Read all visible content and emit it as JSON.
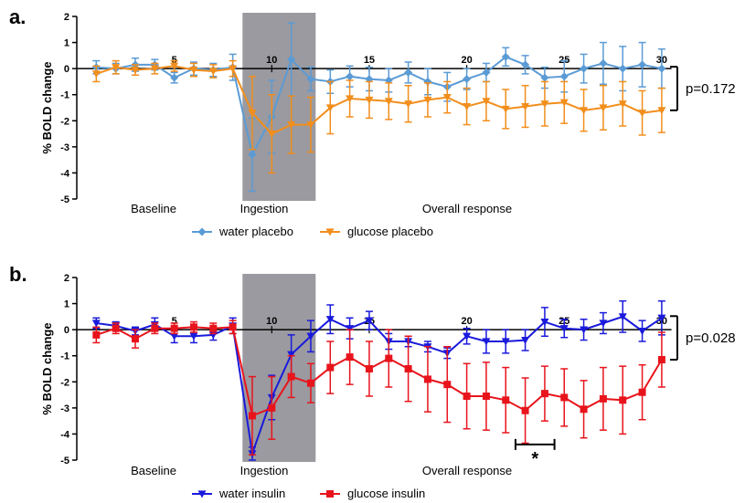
{
  "chart_data": [
    {
      "type": "line",
      "panel_label": "a.",
      "ylabel": "% BOLD change",
      "ylim": [
        -5,
        2
      ],
      "yticks": [
        2,
        1,
        0,
        -1,
        -2,
        -3,
        -4,
        -5
      ],
      "xticks": [
        5,
        10,
        15,
        20,
        25,
        30
      ],
      "regions": [
        "Baseline",
        "Ingestion",
        "Overall response"
      ],
      "shaded_range": [
        8.5,
        12.25
      ],
      "pvalue": "p=0.172",
      "series": [
        {
          "name": "water placebo",
          "color": "#5b9bd5",
          "marker": "diamond",
          "x": [
            1,
            2,
            3,
            4,
            5,
            6,
            7,
            8,
            9,
            10,
            11,
            12,
            13,
            14,
            15,
            16,
            17,
            18,
            19,
            20,
            21,
            22,
            23,
            24,
            25,
            26,
            27,
            28,
            29,
            30
          ],
          "y": [
            0.05,
            0.0,
            0.15,
            0.15,
            -0.35,
            0.0,
            -0.05,
            0.05,
            -3.3,
            -1.85,
            0.35,
            -0.4,
            -0.5,
            -0.3,
            -0.4,
            -0.45,
            -0.15,
            -0.5,
            -0.7,
            -0.4,
            -0.15,
            0.45,
            0.15,
            -0.35,
            -0.3,
            0.0,
            0.2,
            0.0,
            0.15,
            0.0
          ],
          "err": [
            0.25,
            0.2,
            0.25,
            0.2,
            0.2,
            0.25,
            0.25,
            0.5,
            1.4,
            1.4,
            1.4,
            0.45,
            0.45,
            0.4,
            0.45,
            0.45,
            0.4,
            0.5,
            0.55,
            0.4,
            0.35,
            0.35,
            0.35,
            0.4,
            0.6,
            0.55,
            0.8,
            0.85,
            0.85,
            0.75
          ]
        },
        {
          "name": "glucose placebo",
          "color": "#f28e1c",
          "marker": "triangle-down",
          "x": [
            1,
            2,
            3,
            4,
            5,
            6,
            7,
            8,
            9,
            10,
            11,
            12,
            13,
            14,
            15,
            16,
            17,
            18,
            19,
            20,
            21,
            22,
            23,
            24,
            25,
            26,
            27,
            28,
            29,
            30
          ],
          "y": [
            -0.2,
            0.05,
            -0.05,
            0.0,
            0.1,
            -0.05,
            -0.1,
            0.0,
            -1.7,
            -2.5,
            -2.15,
            -2.15,
            -1.5,
            -1.15,
            -1.2,
            -1.25,
            -1.35,
            -1.2,
            -1.1,
            -1.45,
            -1.25,
            -1.55,
            -1.45,
            -1.35,
            -1.3,
            -1.6,
            -1.5,
            -1.35,
            -1.7,
            -1.6
          ],
          "err": [
            0.3,
            0.25,
            0.2,
            0.2,
            0.2,
            0.25,
            0.25,
            0.3,
            1.4,
            1.5,
            1.1,
            1.05,
            1.0,
            0.7,
            0.7,
            0.7,
            0.7,
            0.65,
            0.6,
            0.7,
            0.75,
            0.75,
            0.8,
            0.85,
            0.8,
            0.8,
            0.85,
            0.85,
            0.85,
            0.85
          ]
        }
      ]
    },
    {
      "type": "line",
      "panel_label": "b.",
      "ylabel": "% BOLD change",
      "ylim": [
        -5,
        2
      ],
      "yticks": [
        2,
        1,
        0,
        -1,
        -2,
        -3,
        -4,
        -5
      ],
      "xticks": [
        5,
        10,
        15,
        20,
        25,
        30
      ],
      "regions": [
        "Baseline",
        "Ingestion",
        "Overall response"
      ],
      "shaded_range": [
        8.5,
        12.25
      ],
      "pvalue": "p=0.028",
      "significance": {
        "label": "*",
        "x_range": [
          22.5,
          24.5
        ],
        "y": -4.4
      },
      "series": [
        {
          "name": "water insulin",
          "color": "#1a1adc",
          "marker": "triangle-down",
          "x": [
            1,
            2,
            3,
            4,
            5,
            6,
            7,
            8,
            9,
            10,
            11,
            12,
            13,
            14,
            15,
            16,
            17,
            18,
            19,
            20,
            21,
            22,
            23,
            24,
            25,
            26,
            27,
            28,
            29,
            30
          ],
          "y": [
            0.25,
            0.15,
            -0.05,
            0.2,
            -0.25,
            -0.25,
            -0.2,
            0.15,
            -4.75,
            -2.6,
            -0.95,
            -0.25,
            0.4,
            0.05,
            0.35,
            -0.45,
            -0.45,
            -0.65,
            -0.9,
            -0.25,
            -0.45,
            -0.45,
            -0.4,
            0.3,
            0.05,
            0.0,
            0.25,
            0.5,
            -0.05,
            0.45
          ],
          "err": [
            0.2,
            0.15,
            0.15,
            0.25,
            0.25,
            0.25,
            0.2,
            0.3,
            0.25,
            0.85,
            0.75,
            0.6,
            0.55,
            0.4,
            0.35,
            0.3,
            0.2,
            0.2,
            0.2,
            0.3,
            0.45,
            0.45,
            0.4,
            0.55,
            0.35,
            0.4,
            0.4,
            0.6,
            0.4,
            0.65
          ]
        },
        {
          "name": "glucose insulin",
          "color": "#e8141c",
          "marker": "square",
          "x": [
            1,
            2,
            3,
            4,
            5,
            6,
            7,
            8,
            9,
            10,
            11,
            12,
            13,
            14,
            15,
            16,
            17,
            18,
            19,
            20,
            21,
            22,
            23,
            24,
            25,
            26,
            27,
            28,
            29,
            30
          ],
          "y": [
            -0.2,
            0.05,
            -0.35,
            0.05,
            0.05,
            0.1,
            0.05,
            0.1,
            -3.3,
            -3.0,
            -1.8,
            -2.05,
            -1.45,
            -1.05,
            -1.5,
            -1.1,
            -1.5,
            -1.9,
            -2.1,
            -2.55,
            -2.55,
            -2.7,
            -3.1,
            -2.45,
            -2.6,
            -3.05,
            -2.65,
            -2.7,
            -2.4,
            -1.15
          ],
          "err": [
            0.3,
            0.2,
            0.35,
            0.2,
            0.2,
            0.2,
            0.2,
            0.25,
            1.5,
            1.2,
            0.8,
            0.75,
            1.0,
            1.05,
            1.05,
            1.1,
            1.25,
            1.25,
            1.45,
            1.25,
            1.3,
            1.25,
            1.25,
            1.05,
            1.1,
            1.1,
            1.2,
            1.3,
            1.05,
            1.05
          ]
        }
      ]
    }
  ]
}
